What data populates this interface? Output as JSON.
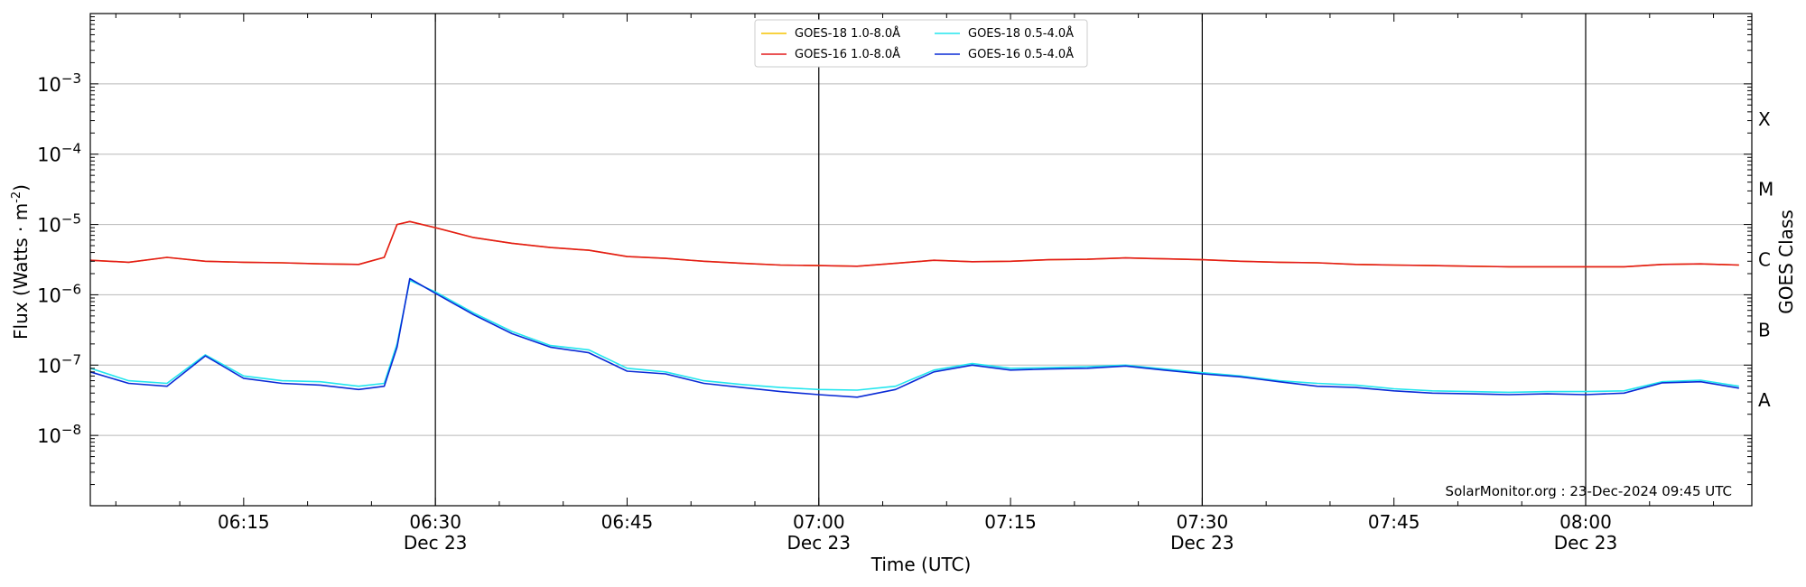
{
  "chart_data": {
    "type": "line",
    "xlabel": "Time (UTC)",
    "ylabel": "Flux (Watts · m",
    "ylabel_sup": "-2",
    "ylabel_close": ")",
    "right_axis_label": "GOES Class",
    "watermark": "SolarMonitor.org : 23-Dec-2024 09:45 UTC",
    "x_range": [
      "06:03",
      "08:13"
    ],
    "ylim": [
      1e-09,
      0.01
    ],
    "y_scale": "log",
    "grid": "horizontal at decades",
    "legend_position": "top-center",
    "y_ticks": [
      {
        "value": 1e-08,
        "base": "10",
        "exp": "−8"
      },
      {
        "value": 1e-07,
        "base": "10",
        "exp": "−7"
      },
      {
        "value": 1e-06,
        "base": "10",
        "exp": "−6"
      },
      {
        "value": 1e-05,
        "base": "10",
        "exp": "−5"
      },
      {
        "value": 0.0001,
        "base": "10",
        "exp": "−4"
      },
      {
        "value": 0.001,
        "base": "10",
        "exp": "−3"
      }
    ],
    "x_ticks": [
      {
        "time": "06:15",
        "label": "06:15",
        "sub": ""
      },
      {
        "time": "06:30",
        "label": "06:30",
        "sub": "Dec 23"
      },
      {
        "time": "06:45",
        "label": "06:45",
        "sub": ""
      },
      {
        "time": "07:00",
        "label": "07:00",
        "sub": "Dec 23"
      },
      {
        "time": "07:15",
        "label": "07:15",
        "sub": ""
      },
      {
        "time": "07:30",
        "label": "07:30",
        "sub": "Dec 23"
      },
      {
        "time": "07:45",
        "label": "07:45",
        "sub": ""
      },
      {
        "time": "08:00",
        "label": "08:00",
        "sub": "Dec 23"
      }
    ],
    "vertical_lines": [
      "06:30",
      "07:00",
      "07:30",
      "08:00"
    ],
    "goes_classes": [
      {
        "label": "A",
        "value": 3.16e-08
      },
      {
        "label": "B",
        "value": 3.16e-07
      },
      {
        "label": "C",
        "value": 3.16e-06
      },
      {
        "label": "M",
        "value": 3.16e-05
      },
      {
        "label": "X",
        "value": 0.000316
      }
    ],
    "time": [
      "06:03",
      "06:06",
      "06:09",
      "06:12",
      "06:15",
      "06:18",
      "06:21",
      "06:24",
      "06:26",
      "06:27",
      "06:28",
      "06:30",
      "06:33",
      "06:36",
      "06:39",
      "06:42",
      "06:45",
      "06:48",
      "06:51",
      "06:54",
      "06:57",
      "07:00",
      "07:03",
      "07:06",
      "07:09",
      "07:12",
      "07:15",
      "07:18",
      "07:21",
      "07:24",
      "07:27",
      "07:30",
      "07:33",
      "07:36",
      "07:39",
      "07:42",
      "07:45",
      "07:48",
      "07:51",
      "07:54",
      "07:57",
      "08:00",
      "08:03",
      "08:06",
      "08:09",
      "08:12"
    ],
    "series": [
      {
        "name": "GOES-18 1.0-8.0Å",
        "color": "#f5c400",
        "values": [
          3.1e-06,
          2.9e-06,
          3.4e-06,
          3e-06,
          2.9e-06,
          2.85e-06,
          2.75e-06,
          2.7e-06,
          3.4e-06,
          1e-05,
          1.1e-05,
          9e-06,
          6.5e-06,
          5.4e-06,
          4.7e-06,
          4.3e-06,
          3.5e-06,
          3.3e-06,
          3e-06,
          2.8e-06,
          2.65e-06,
          2.6e-06,
          2.55e-06,
          2.8e-06,
          3.1e-06,
          2.95e-06,
          3e-06,
          3.15e-06,
          3.2e-06,
          3.35e-06,
          3.25e-06,
          3.15e-06,
          3e-06,
          2.9e-06,
          2.85e-06,
          2.7e-06,
          2.65e-06,
          2.6e-06,
          2.55e-06,
          2.5e-06,
          2.5e-06,
          2.5e-06,
          2.5e-06,
          2.7e-06,
          2.75e-06,
          2.65e-06
        ]
      },
      {
        "name": "GOES-16 1.0-8.0Å",
        "color": "#e31a1c",
        "values": [
          3.1e-06,
          2.9e-06,
          3.4e-06,
          3e-06,
          2.9e-06,
          2.85e-06,
          2.75e-06,
          2.7e-06,
          3.4e-06,
          1e-05,
          1.1e-05,
          9e-06,
          6.5e-06,
          5.4e-06,
          4.7e-06,
          4.3e-06,
          3.5e-06,
          3.3e-06,
          3e-06,
          2.8e-06,
          2.65e-06,
          2.6e-06,
          2.55e-06,
          2.8e-06,
          3.1e-06,
          2.95e-06,
          3e-06,
          3.15e-06,
          3.2e-06,
          3.35e-06,
          3.25e-06,
          3.15e-06,
          3e-06,
          2.9e-06,
          2.85e-06,
          2.7e-06,
          2.65e-06,
          2.6e-06,
          2.55e-06,
          2.5e-06,
          2.5e-06,
          2.5e-06,
          2.5e-06,
          2.7e-06,
          2.75e-06,
          2.65e-06
        ]
      },
      {
        "name": "GOES-18 0.5-4.0Å",
        "color": "#22e6ee",
        "values": [
          9e-08,
          6e-08,
          5.5e-08,
          1.4e-07,
          7e-08,
          6e-08,
          5.8e-08,
          5e-08,
          5.5e-08,
          2e-07,
          1.6e-06,
          1.1e-06,
          5.5e-07,
          3e-07,
          1.9e-07,
          1.65e-07,
          9e-08,
          8e-08,
          6e-08,
          5.3e-08,
          4.8e-08,
          4.5e-08,
          4.4e-08,
          5e-08,
          8.5e-08,
          1.05e-07,
          9e-08,
          9.2e-08,
          9.5e-08,
          1e-07,
          8.8e-08,
          7.8e-08,
          7e-08,
          6e-08,
          5.5e-08,
          5.2e-08,
          4.6e-08,
          4.3e-08,
          4.2e-08,
          4.1e-08,
          4.2e-08,
          4.2e-08,
          4.3e-08,
          5.8e-08,
          6.1e-08,
          5e-08
        ]
      },
      {
        "name": "GOES-16 0.5-4.0Å",
        "color": "#0a2bd6",
        "values": [
          8e-08,
          5.5e-08,
          5e-08,
          1.35e-07,
          6.5e-08,
          5.5e-08,
          5.2e-08,
          4.5e-08,
          5e-08,
          1.8e-07,
          1.7e-06,
          1.05e-06,
          5.2e-07,
          2.8e-07,
          1.8e-07,
          1.5e-07,
          8.2e-08,
          7.5e-08,
          5.5e-08,
          4.8e-08,
          4.2e-08,
          3.8e-08,
          3.5e-08,
          4.5e-08,
          8e-08,
          1e-07,
          8.5e-08,
          8.8e-08,
          9e-08,
          9.7e-08,
          8.5e-08,
          7.5e-08,
          6.8e-08,
          5.8e-08,
          5e-08,
          4.8e-08,
          4.3e-08,
          4e-08,
          3.9e-08,
          3.8e-08,
          3.9e-08,
          3.8e-08,
          4e-08,
          5.6e-08,
          5.8e-08,
          4.7e-08
        ]
      }
    ]
  }
}
